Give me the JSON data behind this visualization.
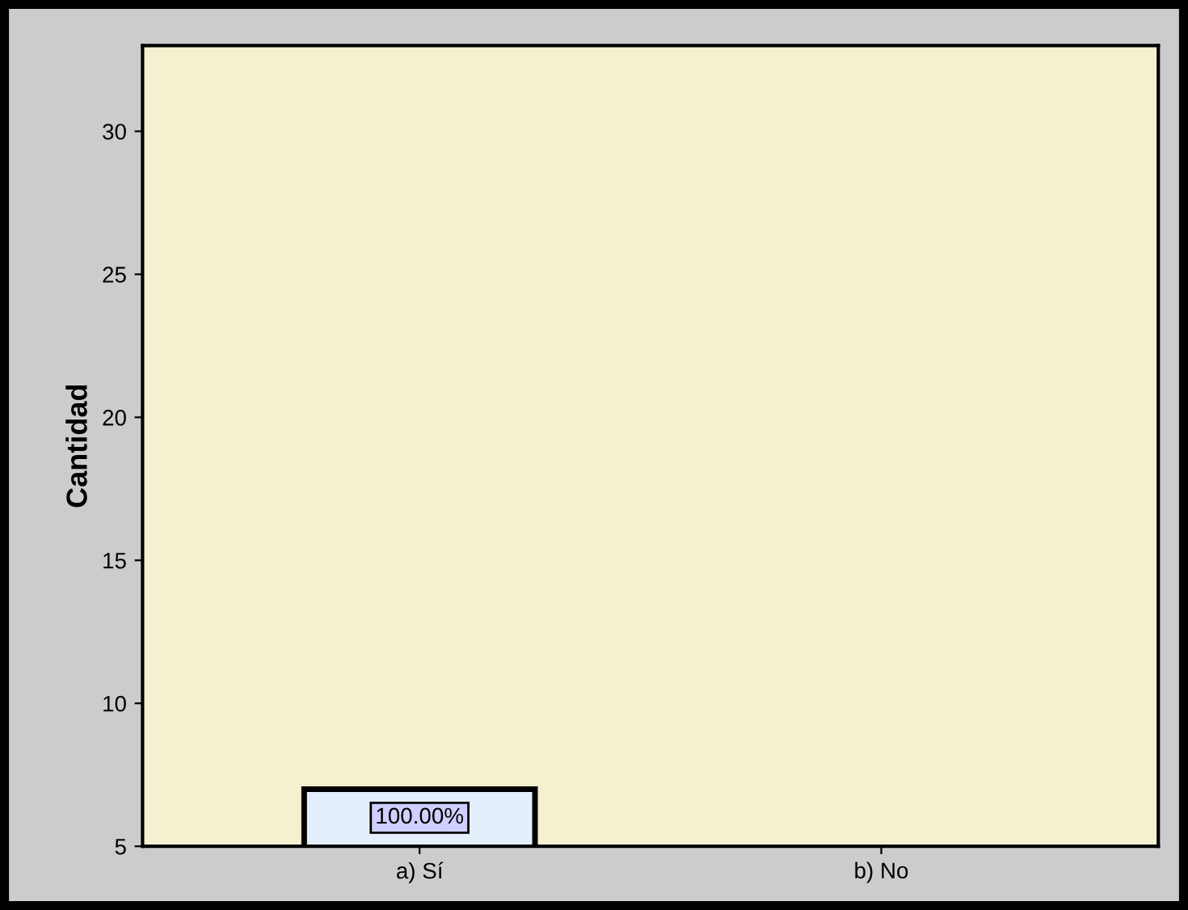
{
  "chart_data": {
    "type": "bar",
    "ylabel": "Cantidad",
    "categories": [
      "a) Sí",
      "b) No"
    ],
    "values": [
      7,
      null
    ],
    "annotations": [
      "100.00%"
    ],
    "color": "#e3effb",
    "ylim": [
      5,
      33
    ],
    "yticks": [
      5,
      10,
      15,
      20,
      25,
      30
    ],
    "grid": false
  }
}
